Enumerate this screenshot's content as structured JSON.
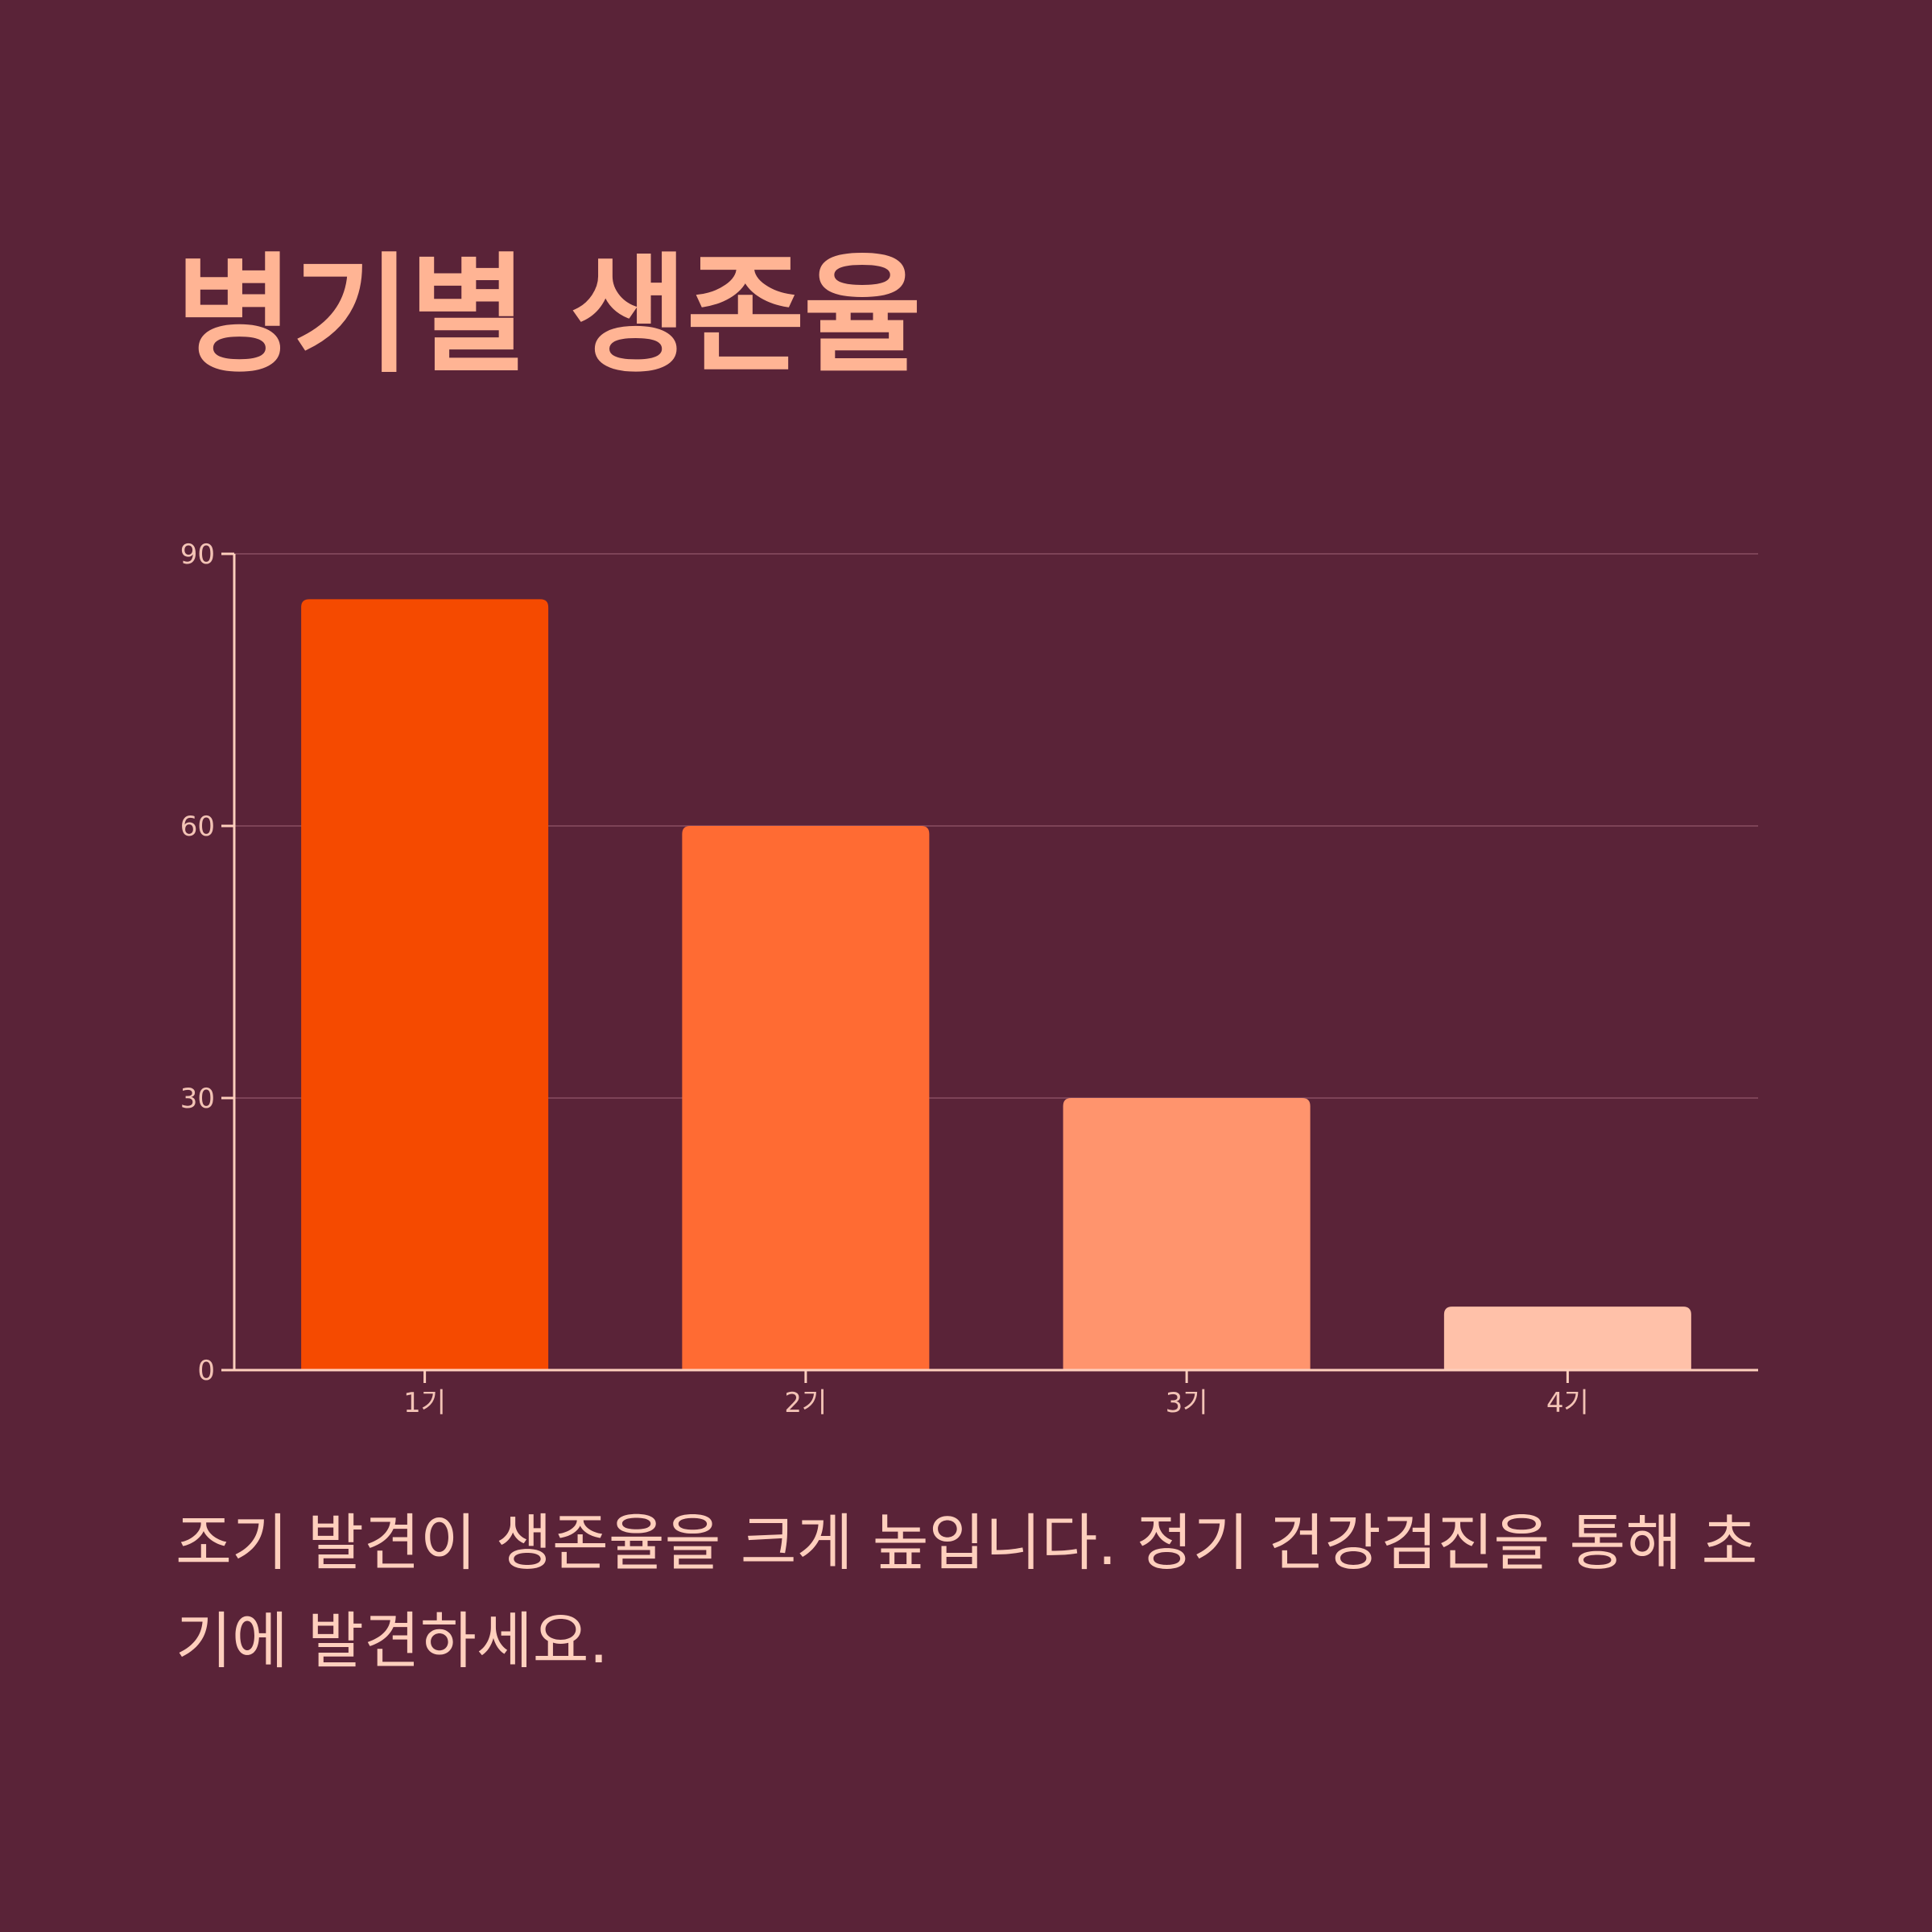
{
  "title": "병기별 생존율",
  "caption": "조기 발견이 생존율을 크게 높입니다. 정기 건강검진을 통해 초기에 발견하세요.",
  "colors": {
    "background": "#5a2338",
    "title": "#ffb494",
    "axis": "#ffcfbd",
    "gridline": "#7d4357",
    "tick_text": "#f3c3b5",
    "caption": "#ffcfbd"
  },
  "chart_data": {
    "type": "bar",
    "title": "",
    "xlabel": "",
    "ylabel": "",
    "categories": [
      "1기",
      "2기",
      "3기",
      "4기"
    ],
    "values": [
      85,
      60,
      30,
      7
    ],
    "bar_colors": [
      "#f54a00",
      "#ff6b33",
      "#ff946d",
      "#ffc1a9"
    ],
    "ylim": [
      0,
      90
    ],
    "yticks": [
      0,
      30,
      60,
      90
    ],
    "grid": true,
    "legend": "none"
  }
}
